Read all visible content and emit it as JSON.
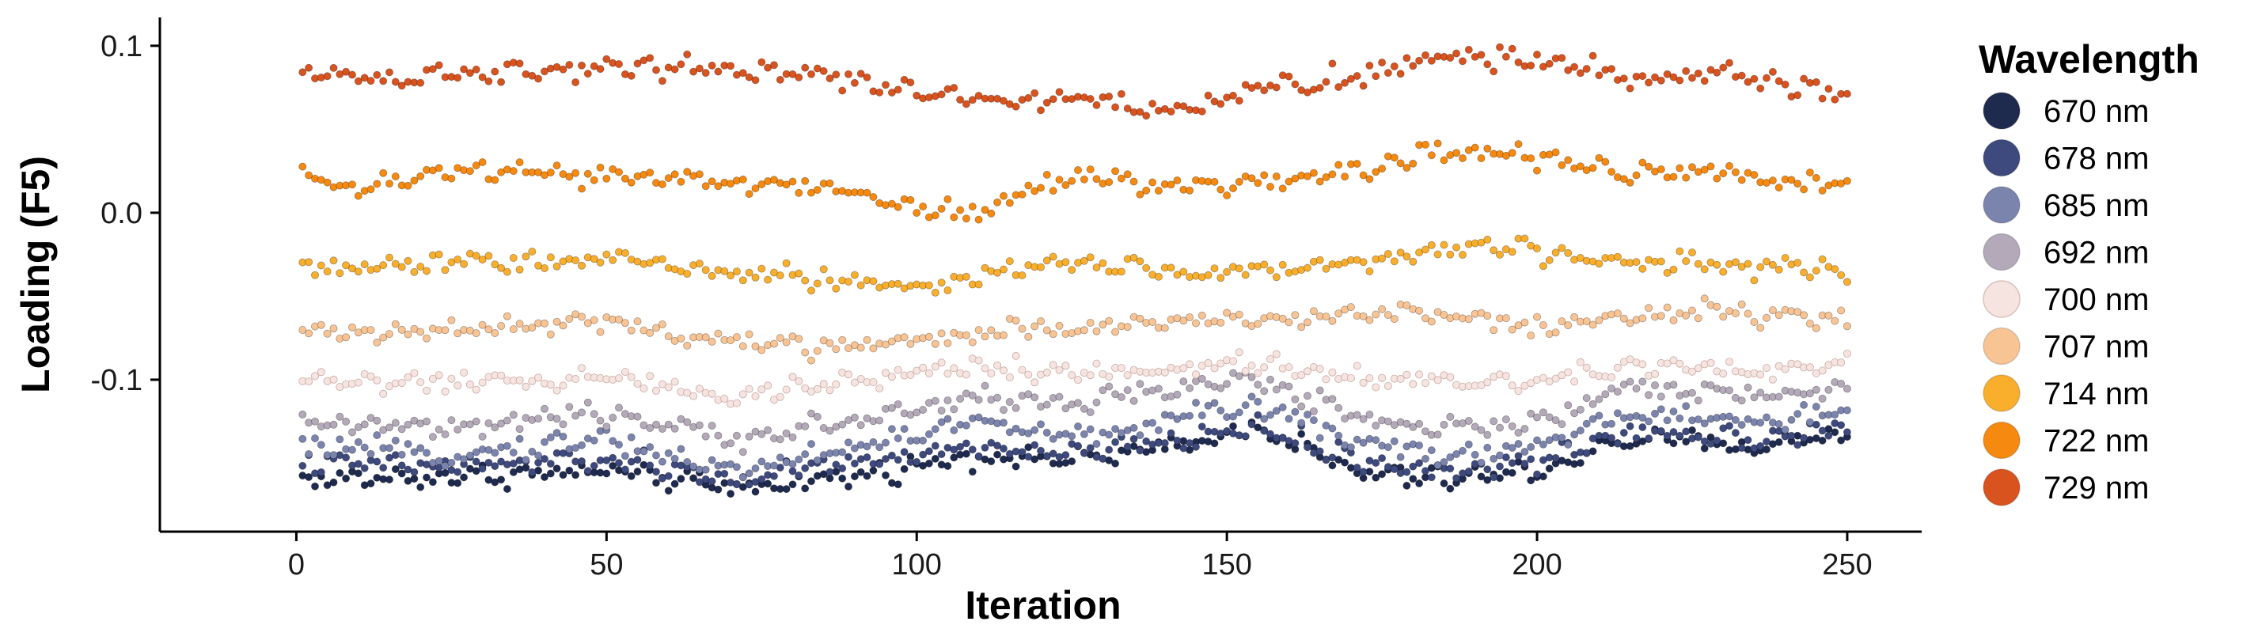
{
  "chart_data": {
    "type": "scatter",
    "xlabel": "Iteration",
    "ylabel": "Loading (F5)",
    "xlim": [
      -22,
      262
    ],
    "ylim": [
      -0.191,
      0.117
    ],
    "xticks": [
      0,
      50,
      100,
      150,
      200,
      250
    ],
    "yticks": [
      -0.1,
      0.0,
      0.1
    ],
    "xtick_labels": [
      "0",
      "50",
      "100",
      "150",
      "200",
      "250"
    ],
    "ytick_labels": [
      "-0.1",
      "0.0",
      "0.1"
    ],
    "grid": false,
    "legend": {
      "title": "Wavelength",
      "position": "right"
    },
    "x": {
      "start": 1,
      "end": 250,
      "step": 1
    },
    "series": [
      {
        "name": "670 nm",
        "color": "#1f2a4f",
        "anchor_x": [
          1,
          25,
          50,
          70,
          90,
          110,
          125,
          140,
          155,
          170,
          185,
          200,
          215,
          235,
          250
        ],
        "anchor_y": [
          -0.16,
          -0.158,
          -0.155,
          -0.165,
          -0.158,
          -0.145,
          -0.148,
          -0.142,
          -0.127,
          -0.155,
          -0.16,
          -0.155,
          -0.135,
          -0.14,
          -0.132
        ]
      },
      {
        "name": "678 nm",
        "color": "#3e4a7e",
        "anchor_x": [
          1,
          25,
          50,
          70,
          90,
          110,
          125,
          140,
          155,
          170,
          185,
          200,
          215,
          235,
          250
        ],
        "anchor_y": [
          -0.15,
          -0.152,
          -0.148,
          -0.16,
          -0.15,
          -0.14,
          -0.145,
          -0.138,
          -0.128,
          -0.148,
          -0.155,
          -0.15,
          -0.13,
          -0.135,
          -0.128
        ]
      },
      {
        "name": "685 nm",
        "color": "#7b84ad",
        "anchor_x": [
          1,
          25,
          50,
          70,
          90,
          110,
          125,
          140,
          155,
          170,
          185,
          200,
          215,
          235,
          250
        ],
        "anchor_y": [
          -0.14,
          -0.145,
          -0.135,
          -0.155,
          -0.14,
          -0.125,
          -0.135,
          -0.125,
          -0.115,
          -0.135,
          -0.145,
          -0.14,
          -0.12,
          -0.125,
          -0.12
        ]
      },
      {
        "name": "692 nm",
        "color": "#b3a9b8",
        "anchor_x": [
          1,
          25,
          50,
          70,
          90,
          110,
          125,
          140,
          155,
          170,
          185,
          200,
          215,
          235,
          250
        ],
        "anchor_y": [
          -0.125,
          -0.13,
          -0.12,
          -0.135,
          -0.125,
          -0.11,
          -0.115,
          -0.105,
          -0.1,
          -0.12,
          -0.13,
          -0.125,
          -0.105,
          -0.11,
          -0.105
        ]
      },
      {
        "name": "700 nm",
        "color": "#f5e4e0",
        "anchor_x": [
          1,
          25,
          50,
          70,
          90,
          110,
          125,
          140,
          155,
          170,
          185,
          200,
          215,
          235,
          250
        ],
        "anchor_y": [
          -0.1,
          -0.103,
          -0.098,
          -0.11,
          -0.1,
          -0.092,
          -0.095,
          -0.093,
          -0.09,
          -0.097,
          -0.102,
          -0.1,
          -0.09,
          -0.094,
          -0.092
        ]
      },
      {
        "name": "707 nm",
        "color": "#f9c494",
        "anchor_x": [
          1,
          25,
          50,
          70,
          90,
          100,
          125,
          140,
          155,
          170,
          185,
          200,
          215,
          235,
          250
        ],
        "anchor_y": [
          -0.072,
          -0.07,
          -0.063,
          -0.078,
          -0.08,
          -0.075,
          -0.068,
          -0.065,
          -0.065,
          -0.06,
          -0.06,
          -0.07,
          -0.06,
          -0.06,
          -0.065
        ]
      },
      {
        "name": "714 nm",
        "color": "#f9ae2c",
        "anchor_x": [
          1,
          25,
          50,
          70,
          90,
          100,
          110,
          125,
          140,
          155,
          170,
          190,
          210,
          230,
          250
        ],
        "anchor_y": [
          -0.035,
          -0.03,
          -0.028,
          -0.035,
          -0.042,
          -0.045,
          -0.038,
          -0.03,
          -0.035,
          -0.035,
          -0.03,
          -0.02,
          -0.028,
          -0.03,
          -0.035
        ]
      },
      {
        "name": "722 nm",
        "color": "#f6890f",
        "anchor_x": [
          1,
          10,
          25,
          50,
          70,
          90,
          100,
          110,
          125,
          140,
          155,
          170,
          190,
          210,
          230,
          250
        ],
        "anchor_y": [
          0.02,
          0.015,
          0.025,
          0.022,
          0.018,
          0.014,
          0.003,
          0.0,
          0.022,
          0.015,
          0.018,
          0.025,
          0.04,
          0.025,
          0.025,
          0.015
        ]
      },
      {
        "name": "729 nm",
        "color": "#d9531f",
        "anchor_x": [
          1,
          10,
          25,
          50,
          70,
          90,
          110,
          125,
          143,
          155,
          170,
          185,
          200,
          215,
          230,
          250
        ],
        "anchor_y": [
          0.088,
          0.08,
          0.083,
          0.088,
          0.088,
          0.08,
          0.066,
          0.07,
          0.06,
          0.075,
          0.08,
          0.093,
          0.092,
          0.08,
          0.085,
          0.068
        ]
      }
    ]
  }
}
